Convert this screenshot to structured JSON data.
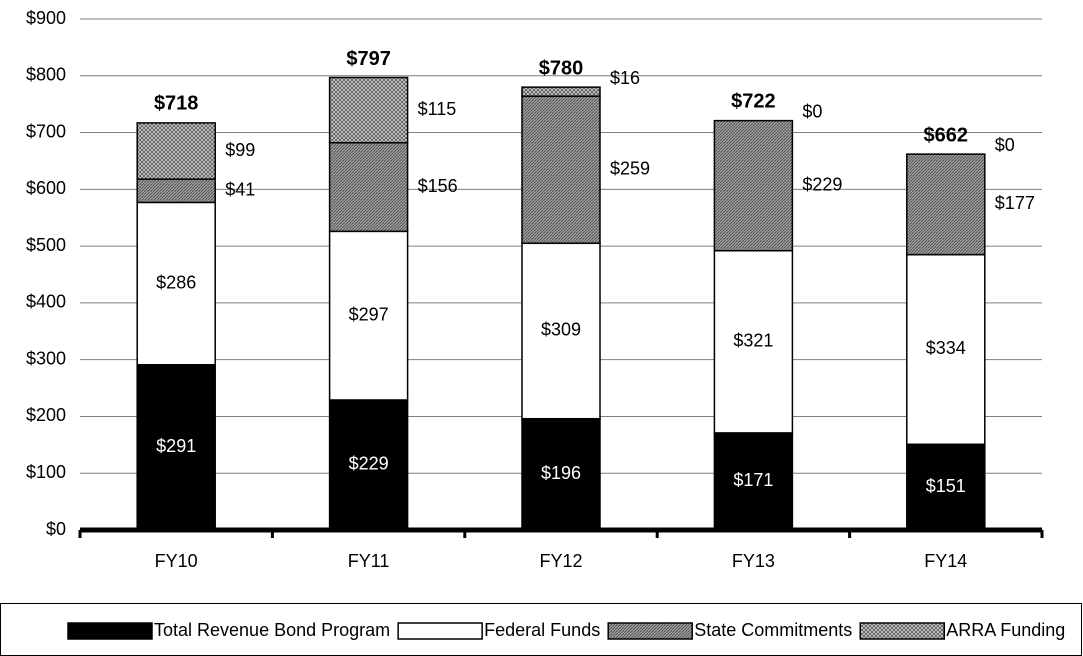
{
  "chart_data": {
    "type": "stacked_bar",
    "categories": [
      "FY10",
      "FY11",
      "FY12",
      "FY13",
      "FY14"
    ],
    "series": [
      {
        "name": "Total Revenue Bond Program",
        "color": "#000000",
        "values": [
          291,
          229,
          196,
          171,
          151
        ],
        "value_labels": [
          "$291",
          "$229",
          "$196",
          "$171",
          "$151"
        ]
      },
      {
        "name": "Federal Funds",
        "color": "#ffffff",
        "values": [
          286,
          297,
          309,
          321,
          334
        ],
        "value_labels": [
          "$286",
          "$297",
          "$309",
          "$321",
          "$334"
        ]
      },
      {
        "name": "State Commitments",
        "color": "#8c8c8c",
        "pattern": "hatch",
        "values": [
          41,
          156,
          259,
          229,
          177
        ],
        "value_labels": [
          "$41",
          "$156",
          "$259",
          "$229",
          "$177"
        ]
      },
      {
        "name": "ARRA Funding",
        "color": "#bdbdbd",
        "pattern": "crosshatch",
        "values": [
          99,
          115,
          16,
          0,
          0
        ],
        "value_labels": [
          "$99",
          "$115",
          "$16",
          "$0",
          "$0"
        ]
      }
    ],
    "totals": [
      718,
      797,
      780,
      722,
      662
    ],
    "total_labels": [
      "$718",
      "$797",
      "$780",
      "$722",
      "$662"
    ],
    "ylim": [
      0,
      900
    ],
    "yticks": [
      {
        "value": 0,
        "label": "$0"
      },
      {
        "value": 100,
        "label": "$100"
      },
      {
        "value": 200,
        "label": "$200"
      },
      {
        "value": 300,
        "label": "$300"
      },
      {
        "value": 400,
        "label": "$400"
      },
      {
        "value": 500,
        "label": "$500"
      },
      {
        "value": 600,
        "label": "$600"
      },
      {
        "value": 700,
        "label": "$700"
      },
      {
        "value": 800,
        "label": "$800"
      },
      {
        "value": 900,
        "label": "$900"
      }
    ],
    "grid": true,
    "legend": "bottom"
  }
}
